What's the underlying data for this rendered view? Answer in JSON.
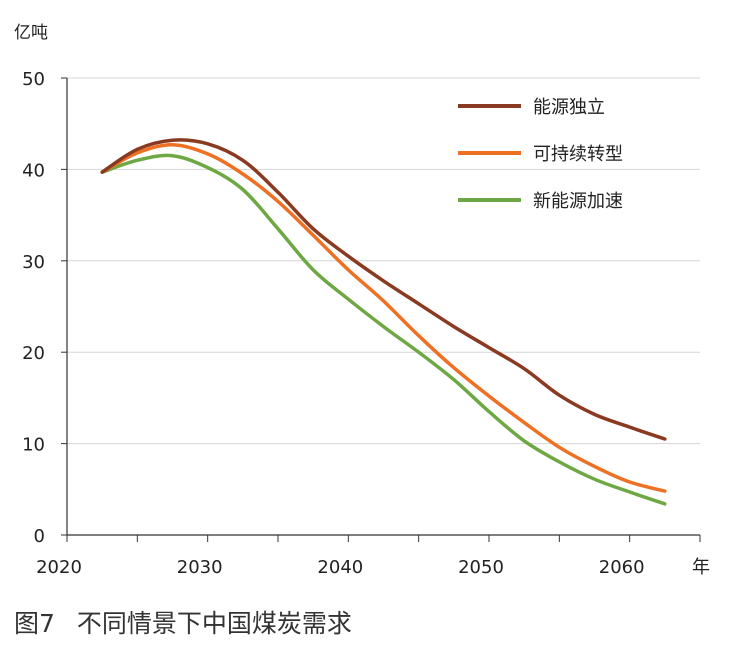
{
  "chart_data": {
    "type": "line",
    "ylabel": "亿吨",
    "xlabel": "年",
    "xlim": [
      2020,
      2065
    ],
    "ylim": [
      0,
      50
    ],
    "xticks": [
      "2020",
      "2030",
      "2040",
      "2050",
      "2060"
    ],
    "yticks": [
      "50",
      "40",
      "30",
      "20",
      "10",
      "0"
    ],
    "grid": true,
    "legend_position": "top-right",
    "series": [
      {
        "name": "能源独立",
        "color": "#8B3A22",
        "x": [
          2022.5,
          2025,
          2027.5,
          2030,
          2032.5,
          2035,
          2037.5,
          2040,
          2042.5,
          2045,
          2047.5,
          2050,
          2052.5,
          2055,
          2057.5,
          2060,
          2062.5
        ],
        "y": [
          39.7,
          42.2,
          43.2,
          42.8,
          41.0,
          37.5,
          33.5,
          30.5,
          27.8,
          25.3,
          22.8,
          20.5,
          18.2,
          15.3,
          13.2,
          11.8,
          10.5
        ]
      },
      {
        "name": "可持续转型",
        "color": "#EE7023",
        "x": [
          2022.5,
          2025,
          2027.5,
          2030,
          2032.5,
          2035,
          2037.5,
          2040,
          2042.5,
          2045,
          2047.5,
          2050,
          2052.5,
          2055,
          2057.5,
          2060,
          2062.5
        ],
        "y": [
          39.7,
          41.8,
          42.7,
          41.7,
          39.5,
          36.5,
          32.8,
          29.0,
          25.6,
          21.8,
          18.3,
          15.2,
          12.3,
          9.6,
          7.5,
          5.8,
          4.8
        ]
      },
      {
        "name": "新能源加速",
        "color": "#6EA844",
        "x": [
          2022.5,
          2025,
          2027.5,
          2030,
          2032.5,
          2035,
          2037.5,
          2040,
          2042.5,
          2045,
          2047.5,
          2050,
          2052.5,
          2055,
          2057.5,
          2060,
          2062.5
        ],
        "y": [
          39.7,
          41.0,
          41.5,
          40.2,
          37.8,
          33.5,
          29.0,
          25.8,
          22.8,
          20.0,
          17.0,
          13.5,
          10.3,
          8.0,
          6.1,
          4.7,
          3.4
        ]
      }
    ]
  },
  "caption": {
    "number": "图7",
    "title": "不同情景下中国煤炭需求"
  }
}
